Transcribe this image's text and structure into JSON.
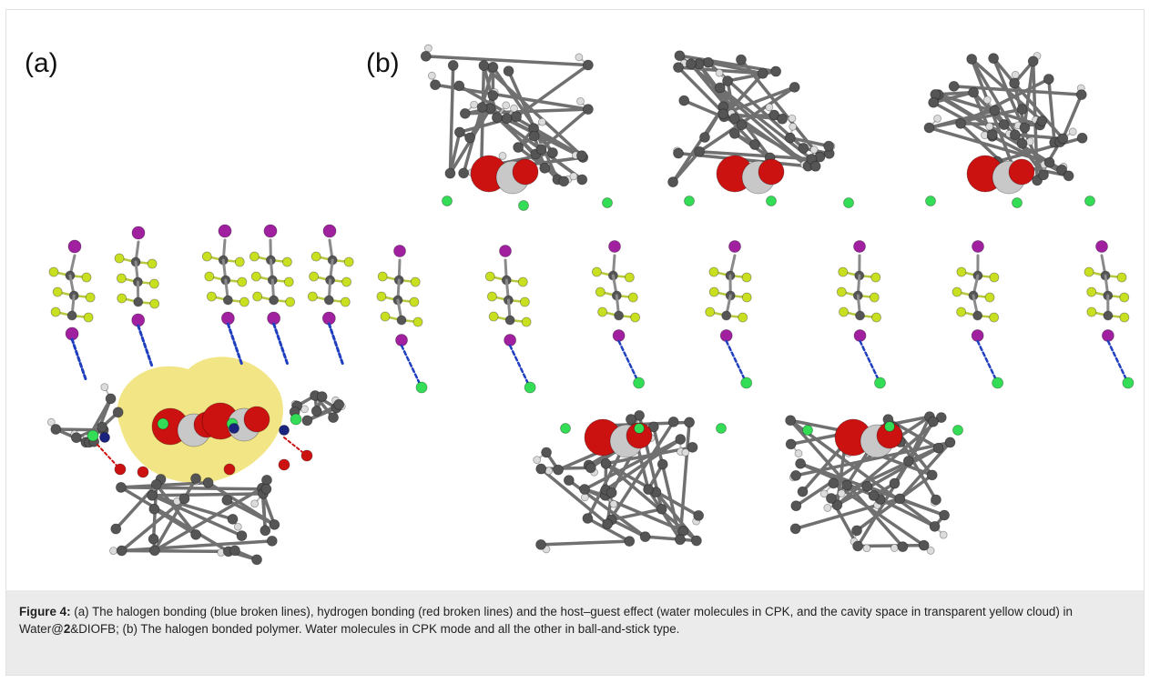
{
  "panels": {
    "a_label": "(a)",
    "b_label": "(b)"
  },
  "caption": {
    "label": "Figure 4:",
    "part1": " (a) The halogen bonding (blue broken lines), hydrogen bonding (red broken lines) and the host–guest effect (water molecules in CPK, and the cavity space in transparent yellow cloud) in Water@",
    "bold_num": "2",
    "part2": "&DIOFB; (b) The halogen bonded polymer. Water molecules in CPK mode and all the other in ball-and-stick type."
  },
  "colors": {
    "carbon": "#555555",
    "hydrogen": "#dcdcdc",
    "oxygen": "#cc1111",
    "iodine": "#a020a0",
    "fluorine": "#c8e020",
    "chlorine": "#33dd55",
    "nitrogen": "#1a237e",
    "nitrogen_light": "#8888dd",
    "halogen_bond": "#1f3fbf",
    "hydrogen_bond": "#cc1111",
    "cavity": "#e8d020"
  }
}
